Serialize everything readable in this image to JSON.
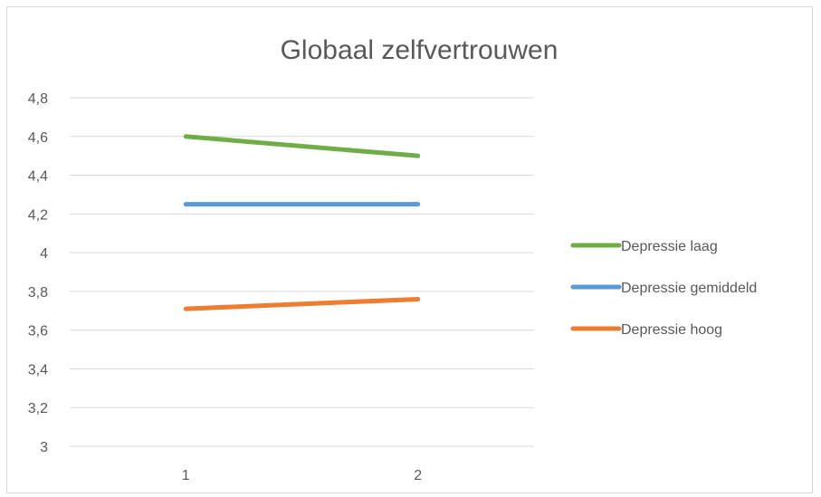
{
  "chart_data": {
    "type": "line",
    "title": "Globaal zelfvertrouwen",
    "xlabel": "",
    "ylabel": "",
    "categories": [
      "1",
      "2"
    ],
    "ylim": [
      3,
      4.8
    ],
    "ytick_labels": [
      "3",
      "3,2",
      "3,4",
      "3,6",
      "3,8",
      "4",
      "4,2",
      "4,4",
      "4,6",
      "4,8"
    ],
    "grid": true,
    "legend_position": "right",
    "series": [
      {
        "name": "Depressie laag",
        "values": [
          4.6,
          4.5
        ],
        "color": "#70ad47"
      },
      {
        "name": "Depressie gemiddeld",
        "values": [
          4.25,
          4.25
        ],
        "color": "#5b9bd5"
      },
      {
        "name": "Depressie hoog",
        "values": [
          3.71,
          3.76
        ],
        "color": "#ed7d31"
      }
    ]
  }
}
